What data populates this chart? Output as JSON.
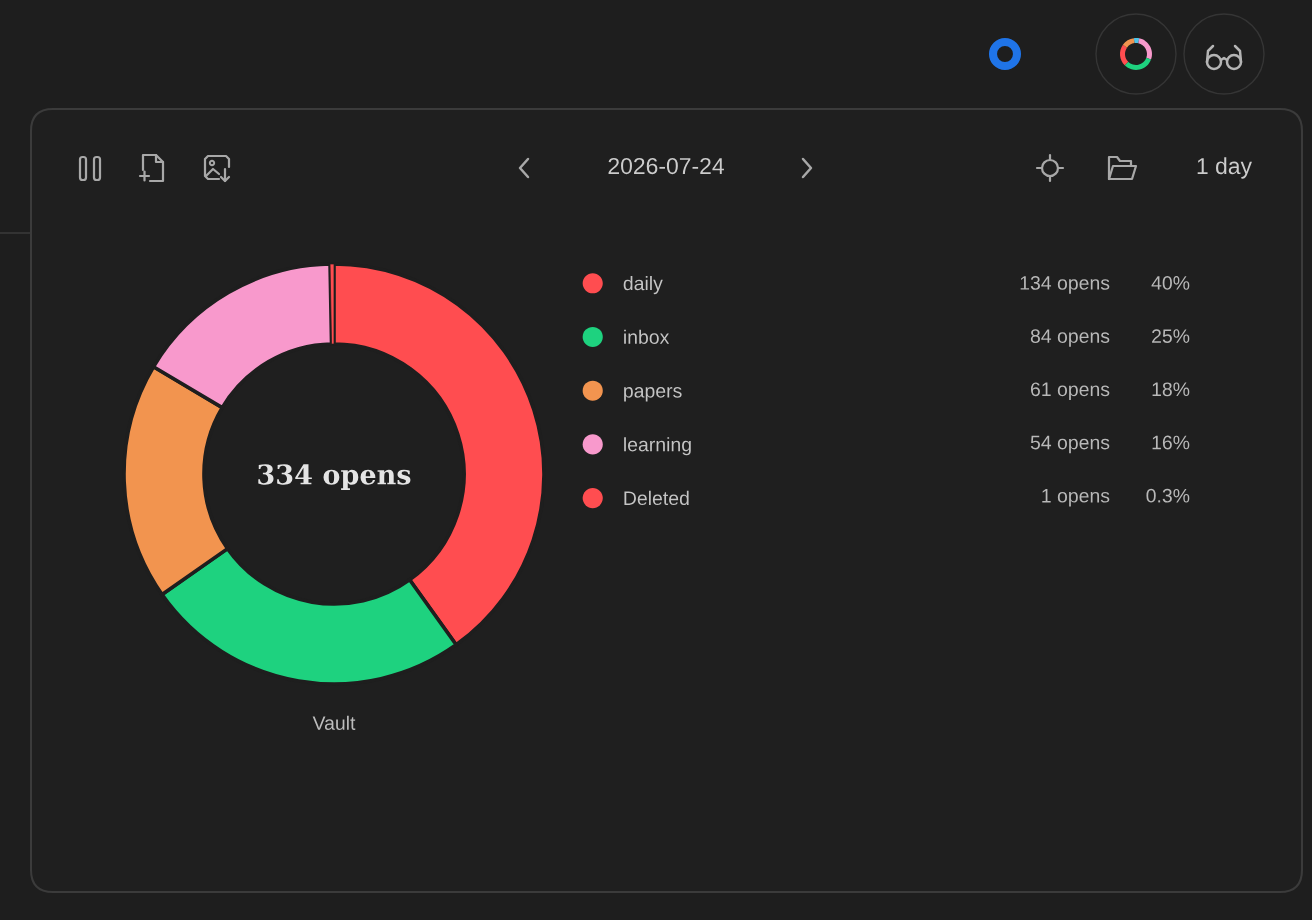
{
  "chart_data": {
    "type": "donut",
    "title": "2026-07-24",
    "xlabel": "Vault",
    "categories": [
      "daily",
      "inbox",
      "papers",
      "learning",
      "Deleted"
    ],
    "values": [
      134,
      84,
      61,
      54,
      1
    ],
    "colors": [
      "#ff4d50",
      "#1ed27f",
      "#f2944f",
      "#f899cc",
      "#ff4d50"
    ],
    "value_labels": [
      "134 opens",
      "84 opens",
      "61 opens",
      "54 opens",
      "1 opens"
    ],
    "annotations": [
      "334 opens",
      "1 day",
      "40%",
      "25%",
      "18%",
      "16%",
      "0.3%"
    ],
    "legend": "right"
  }
}
